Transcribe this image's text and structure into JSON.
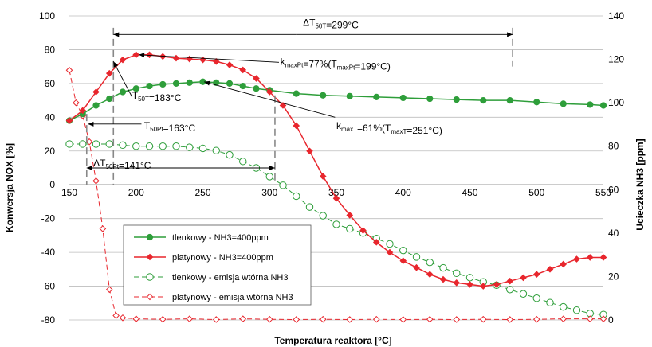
{
  "chart_data": {
    "type": "line",
    "title": "",
    "xlabel": "Temperatura reaktora [°C]",
    "ylabel_left": "Konwersja NOX [%]",
    "ylabel_right": "Ucieczka NH3 [ppm]",
    "xlim": [
      150,
      550
    ],
    "ylim_left": [
      -80,
      100
    ],
    "ylim_right": [
      0,
      140
    ],
    "x_ticks": [
      "150",
      "200",
      "250",
      "300",
      "350",
      "400",
      "450",
      "500",
      "550"
    ],
    "y_left_ticks": [
      "100",
      "80",
      "60",
      "40",
      "20",
      "0",
      "-20",
      "-40",
      "-60",
      "-80"
    ],
    "y_right_ticks": [
      "140",
      "120",
      "100",
      "80",
      "60",
      "40",
      "20",
      "0"
    ],
    "grid": "horizontal",
    "legend_position": "bottom-left",
    "series": [
      {
        "name": "tlenkowy - NH3=400ppm",
        "axis": "left",
        "color": "#2e9e3a",
        "marker": "filled-circle",
        "line": "solid",
        "points": [
          [
            150,
            38
          ],
          [
            160,
            42
          ],
          [
            170,
            47
          ],
          [
            180,
            51
          ],
          [
            190,
            55
          ],
          [
            200,
            57
          ],
          [
            210,
            58.5
          ],
          [
            220,
            59.5
          ],
          [
            230,
            60
          ],
          [
            240,
            60.5
          ],
          [
            250,
            61
          ],
          [
            260,
            60.5
          ],
          [
            270,
            60
          ],
          [
            280,
            58.5
          ],
          [
            290,
            57
          ],
          [
            300,
            56
          ],
          [
            320,
            54
          ],
          [
            340,
            53
          ],
          [
            360,
            52.5
          ],
          [
            380,
            52
          ],
          [
            400,
            51.5
          ],
          [
            420,
            51
          ],
          [
            440,
            50.5
          ],
          [
            460,
            50
          ],
          [
            480,
            50
          ],
          [
            500,
            49
          ],
          [
            520,
            48
          ],
          [
            540,
            47.5
          ],
          [
            550,
            47
          ]
        ]
      },
      {
        "name": "platynowy - NH3=400ppm",
        "axis": "left",
        "color": "#e8262d",
        "marker": "filled-diamond",
        "line": "solid",
        "points": [
          [
            150,
            38
          ],
          [
            160,
            44
          ],
          [
            170,
            55
          ],
          [
            180,
            66
          ],
          [
            190,
            74
          ],
          [
            200,
            77
          ],
          [
            210,
            77
          ],
          [
            220,
            76
          ],
          [
            230,
            75
          ],
          [
            240,
            74.5
          ],
          [
            250,
            74
          ],
          [
            260,
            73
          ],
          [
            270,
            71
          ],
          [
            280,
            68
          ],
          [
            290,
            63
          ],
          [
            300,
            55
          ],
          [
            310,
            47
          ],
          [
            320,
            35
          ],
          [
            330,
            20
          ],
          [
            340,
            5
          ],
          [
            350,
            -8
          ],
          [
            360,
            -18
          ],
          [
            370,
            -27
          ],
          [
            380,
            -34
          ],
          [
            390,
            -40
          ],
          [
            400,
            -45
          ],
          [
            410,
            -49
          ],
          [
            420,
            -53
          ],
          [
            430,
            -56
          ],
          [
            440,
            -58
          ],
          [
            450,
            -59
          ],
          [
            460,
            -60
          ],
          [
            470,
            -59
          ],
          [
            480,
            -57
          ],
          [
            490,
            -55
          ],
          [
            500,
            -53
          ],
          [
            510,
            -50
          ],
          [
            520,
            -47
          ],
          [
            530,
            -44
          ],
          [
            540,
            -43
          ],
          [
            550,
            -43
          ]
        ]
      },
      {
        "name": "tlenkowy - emisja wtórna NH3",
        "axis": "right",
        "color": "#2e9e3a",
        "marker": "open-circle",
        "line": "dashed",
        "points": [
          [
            150,
            81
          ],
          [
            160,
            81
          ],
          [
            170,
            81
          ],
          [
            180,
            81
          ],
          [
            190,
            80.5
          ],
          [
            200,
            80
          ],
          [
            210,
            80
          ],
          [
            220,
            80
          ],
          [
            230,
            80
          ],
          [
            240,
            79.5
          ],
          [
            250,
            79
          ],
          [
            260,
            78
          ],
          [
            270,
            76
          ],
          [
            280,
            73
          ],
          [
            290,
            70
          ],
          [
            300,
            66
          ],
          [
            310,
            62
          ],
          [
            320,
            57
          ],
          [
            330,
            52
          ],
          [
            340,
            48
          ],
          [
            350,
            44
          ],
          [
            360,
            42
          ],
          [
            370,
            40
          ],
          [
            380,
            37.5
          ],
          [
            390,
            35
          ],
          [
            400,
            32
          ],
          [
            410,
            29
          ],
          [
            420,
            26.5
          ],
          [
            430,
            24
          ],
          [
            440,
            21.5
          ],
          [
            450,
            19.5
          ],
          [
            460,
            17.5
          ],
          [
            470,
            16
          ],
          [
            480,
            14
          ],
          [
            490,
            12
          ],
          [
            500,
            10
          ],
          [
            510,
            8
          ],
          [
            520,
            6
          ],
          [
            530,
            4.5
          ],
          [
            540,
            3
          ],
          [
            550,
            2.5
          ]
        ]
      },
      {
        "name": "platynowy - emisja wtórna NH3",
        "axis": "right",
        "color": "#e8262d",
        "marker": "open-diamond",
        "line": "dashed",
        "points": [
          [
            150,
            115
          ],
          [
            155,
            100
          ],
          [
            160,
            94
          ],
          [
            165,
            82
          ],
          [
            170,
            64
          ],
          [
            175,
            42
          ],
          [
            180,
            14
          ],
          [
            185,
            2
          ],
          [
            190,
            1
          ],
          [
            200,
            0.5
          ],
          [
            220,
            0.3
          ],
          [
            240,
            0.5
          ],
          [
            260,
            0.2
          ],
          [
            280,
            0.5
          ],
          [
            300,
            0.3
          ],
          [
            320,
            0.2
          ],
          [
            340,
            0.3
          ],
          [
            360,
            0.2
          ],
          [
            380,
            0.3
          ],
          [
            400,
            0.2
          ],
          [
            420,
            0.3
          ],
          [
            440,
            0.2
          ],
          [
            460,
            0.3
          ],
          [
            480,
            0.2
          ],
          [
            500,
            0.3
          ],
          [
            520,
            0.5
          ],
          [
            540,
            0.5
          ],
          [
            550,
            0.5
          ]
        ]
      }
    ],
    "annotations": [
      {
        "text": "ΔT",
        "sub": "50T",
        "rest": "=299°C"
      },
      {
        "text": "k",
        "sub": "maxPt",
        "rest": "=77%(T",
        "sub2": "maxPt",
        "rest2": "=199°C)"
      },
      {
        "text": "T",
        "sub": "50T",
        "rest": "=183°C"
      },
      {
        "text": "T",
        "sub": "50Pt",
        "rest": "=163°C"
      },
      {
        "text": "k",
        "sub": "maxT",
        "rest": "=61%(T",
        "sub2": "maxT",
        "rest2": "=251°C)"
      },
      {
        "text": "ΔT",
        "sub": "50Pt",
        "rest": "=141°C"
      }
    ]
  }
}
